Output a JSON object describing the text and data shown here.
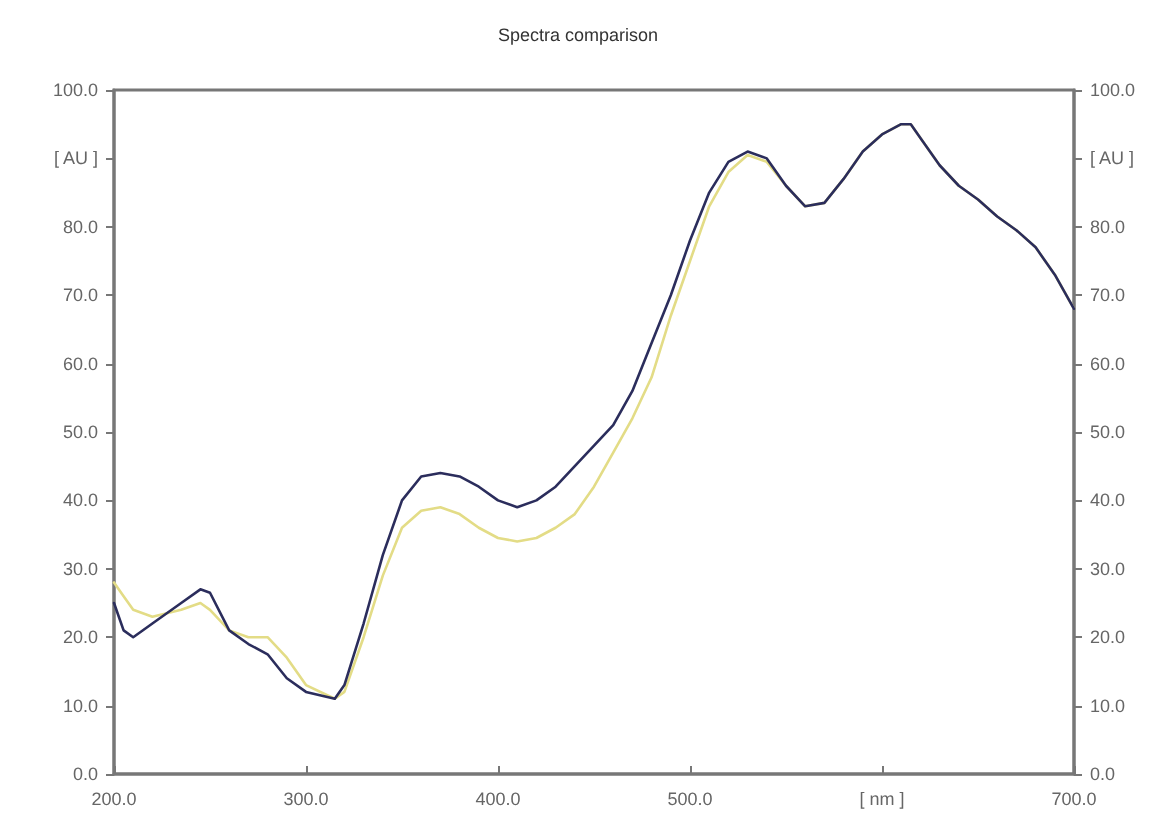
{
  "chart_data": {
    "type": "line",
    "title": "Spectra comparison",
    "x": [
      200,
      205,
      210,
      220,
      235,
      245,
      250,
      260,
      270,
      280,
      290,
      300,
      315,
      320,
      330,
      340,
      350,
      360,
      370,
      380,
      390,
      400,
      410,
      420,
      430,
      440,
      450,
      460,
      470,
      480,
      490,
      500,
      510,
      520,
      530,
      540,
      550,
      560,
      570,
      580,
      590,
      600,
      610,
      615,
      620,
      630,
      640,
      650,
      660,
      670,
      680,
      690,
      700
    ],
    "series": [
      {
        "color": "#e3dc86",
        "values": [
          28,
          26,
          24,
          23,
          24,
          25,
          24,
          21,
          20,
          20,
          17,
          13,
          11,
          12,
          20,
          29,
          36,
          38.5,
          39,
          38,
          36,
          34.5,
          34,
          34.5,
          36,
          38,
          42,
          47,
          52,
          58,
          67,
          75,
          83,
          88,
          90.5,
          89.5,
          86,
          83,
          83.5,
          87,
          91,
          93.5,
          95,
          95,
          93,
          89,
          86,
          84,
          81.5,
          79.5,
          77,
          73,
          68
        ]
      },
      {
        "color": "#2b2d5c",
        "values": [
          25,
          21,
          20,
          22,
          25,
          27,
          26.5,
          21,
          19,
          17.5,
          14,
          12,
          11,
          13,
          22,
          32,
          40,
          43.5,
          44,
          43.5,
          42,
          40,
          39,
          40,
          42,
          45,
          48,
          51,
          56,
          63,
          70,
          78,
          85,
          89.5,
          91,
          90,
          86,
          83,
          83.5,
          87,
          91,
          93.5,
          95,
          95,
          93,
          89,
          86,
          84,
          81.5,
          79.5,
          77,
          73,
          68
        ]
      }
    ],
    "xlim": [
      200,
      700
    ],
    "xticks": [
      {
        "value": 200,
        "label": "200.0"
      },
      {
        "value": 300,
        "label": "300.0"
      },
      {
        "value": 400,
        "label": "400.0"
      },
      {
        "value": 500,
        "label": "500.0"
      },
      {
        "value": 600,
        "label": "[ nm ]"
      },
      {
        "value": 700,
        "label": "700.0"
      }
    ],
    "ylim": [
      0,
      100
    ],
    "yticks": [
      {
        "value": 0,
        "label": "0.0"
      },
      {
        "value": 10,
        "label": "10.0"
      },
      {
        "value": 20,
        "label": "20.0"
      },
      {
        "value": 30,
        "label": "30.0"
      },
      {
        "value": 40,
        "label": "40.0"
      },
      {
        "value": 50,
        "label": "50.0"
      },
      {
        "value": 60,
        "label": "60.0"
      },
      {
        "value": 70,
        "label": "70.0"
      },
      {
        "value": 80,
        "label": "80.0"
      },
      {
        "value": 90,
        "label": "[ AU ]"
      },
      {
        "value": 100,
        "label": "100.0"
      }
    ],
    "y2lim": [
      0,
      100
    ],
    "y2ticks": [
      {
        "value": 0,
        "label": "0.0"
      },
      {
        "value": 10,
        "label": "10.0"
      },
      {
        "value": 20,
        "label": "20.0"
      },
      {
        "value": 30,
        "label": "30.0"
      },
      {
        "value": 40,
        "label": "40.0"
      },
      {
        "value": 50,
        "label": "50.0"
      },
      {
        "value": 60,
        "label": "60.0"
      },
      {
        "value": 70,
        "label": "70.0"
      },
      {
        "value": 80,
        "label": "80.0"
      },
      {
        "value": 90,
        "label": "[ AU ]"
      },
      {
        "value": 100,
        "label": "100.0"
      }
    ],
    "grid": false,
    "marker": "none",
    "line_style": "solid"
  }
}
